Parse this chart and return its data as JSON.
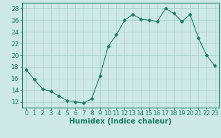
{
  "x": [
    0,
    1,
    2,
    3,
    4,
    5,
    6,
    7,
    8,
    9,
    10,
    11,
    12,
    13,
    14,
    15,
    16,
    17,
    18,
    19,
    20,
    21,
    22,
    23
  ],
  "y": [
    17.5,
    15.8,
    14.2,
    13.8,
    13.0,
    12.2,
    12.0,
    11.8,
    12.5,
    16.5,
    21.5,
    23.5,
    26.0,
    27.0,
    26.2,
    26.0,
    25.8,
    28.0,
    27.2,
    25.8,
    27.0,
    23.0,
    20.0,
    18.2
  ],
  "line_color": "#1a7a5e",
  "marker": "D",
  "marker_size": 2.5,
  "bg_color": "#cce9e5",
  "grid_color": "#aacfcc",
  "xlabel": "Humidex (Indice chaleur)",
  "xlim": [
    -0.5,
    23.5
  ],
  "ylim": [
    11,
    29
  ],
  "yticks": [
    12,
    14,
    16,
    18,
    20,
    22,
    24,
    26,
    28
  ],
  "xticks": [
    0,
    1,
    2,
    3,
    4,
    5,
    6,
    7,
    8,
    9,
    10,
    11,
    12,
    13,
    14,
    15,
    16,
    17,
    18,
    19,
    20,
    21,
    22,
    23
  ],
  "tick_label_fontsize": 6.5,
  "xlabel_fontsize": 7.5,
  "spine_color": "#1a7a5e",
  "tick_color": "#1a7a5e"
}
